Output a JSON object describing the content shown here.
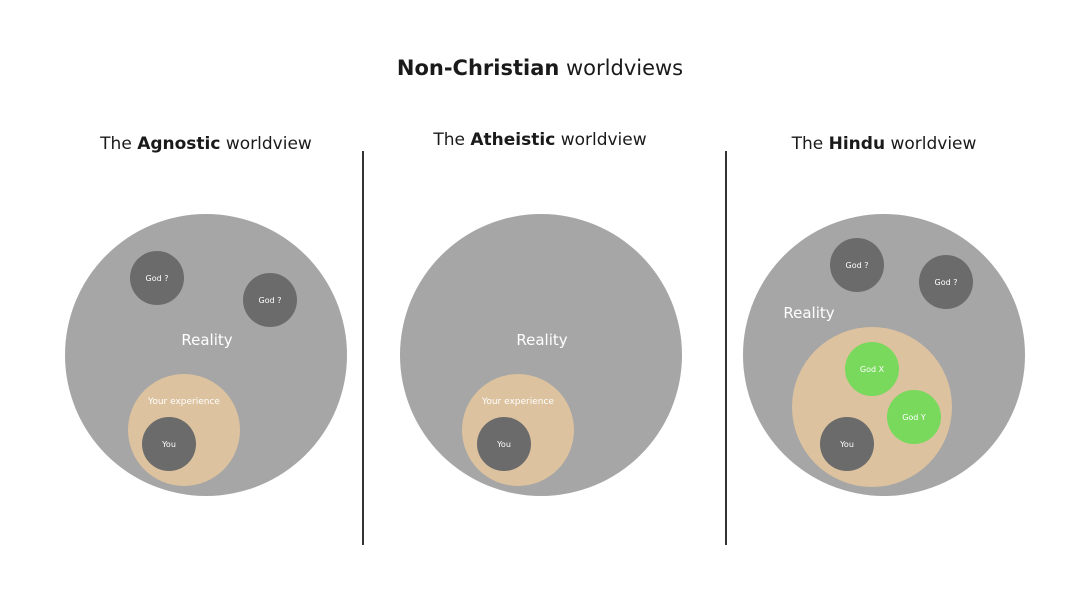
{
  "title": {
    "bold": "Non-Christian",
    "rest": " worldviews"
  },
  "panels": [
    {
      "prefix": "The ",
      "bold": "Agnostic",
      "suffix": " worldview",
      "reality": "Reality",
      "experience": "Your experience",
      "you": "You",
      "gods": [
        "God ?",
        "God ?"
      ]
    },
    {
      "prefix": "The ",
      "bold": "Atheistic",
      "suffix": " worldview",
      "reality": "Reality",
      "experience": "Your experience",
      "you": "You"
    },
    {
      "prefix": "The ",
      "bold": "Hindu",
      "suffix": " worldview",
      "reality": "Reality",
      "you": "You",
      "gods": [
        "God ?",
        "God ?"
      ],
      "inner_gods": [
        "God X",
        "God Y"
      ]
    }
  ],
  "colors": {
    "reality": "#a6a6a6",
    "experience": "#dcc29f",
    "dark_circle": "#6b6b6b",
    "green_circle": "#78d95c"
  }
}
